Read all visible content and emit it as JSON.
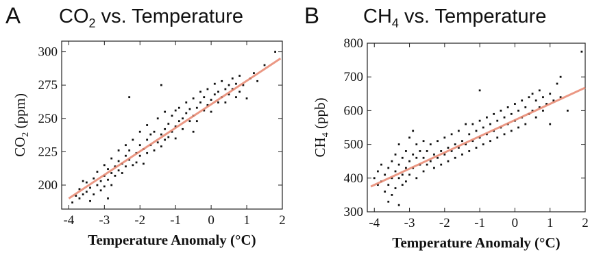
{
  "chart_data": [
    {
      "type": "scatter",
      "panel_label": "A",
      "title": "CO₂ vs. Temperature",
      "title_parts": {
        "pre": "CO",
        "sub": "2",
        "post": " vs. Temperature"
      },
      "xlabel": "Temperature Anomaly (°C)",
      "ylabel": "CO₂ (ppm)",
      "ylabel_parts": {
        "pre": "CO",
        "sub": "2",
        "post": " (ppm)"
      },
      "xlim": [
        -4.2,
        2.0
      ],
      "ylim": [
        182,
        308
      ],
      "xticks": [
        -4,
        -3,
        -2,
        -1,
        0,
        1,
        2
      ],
      "yticks": [
        200,
        225,
        250,
        275,
        300
      ],
      "fit_line": {
        "x": [
          -4.0,
          1.95
        ],
        "y": [
          190,
          295
        ],
        "color": "#e8866e"
      },
      "point_color": "#111111",
      "series": [
        {
          "points": [
            [
              -3.9,
              187
            ],
            [
              -3.8,
              192
            ],
            [
              -3.7,
              190
            ],
            [
              -3.7,
              197
            ],
            [
              -3.6,
              193
            ],
            [
              -3.5,
              195
            ],
            [
              -3.5,
              202
            ],
            [
              -3.4,
              188
            ],
            [
              -3.4,
              198
            ],
            [
              -3.3,
              205
            ],
            [
              -3.3,
              193
            ],
            [
              -3.2,
              200
            ],
            [
              -3.2,
              210
            ],
            [
              -3.1,
              196
            ],
            [
              -3.1,
              203
            ],
            [
              -3.0,
              207
            ],
            [
              -3.0,
              215
            ],
            [
              -3.0,
              199
            ],
            [
              -2.9,
              212
            ],
            [
              -2.9,
              204
            ],
            [
              -2.8,
              209
            ],
            [
              -2.8,
              220
            ],
            [
              -2.8,
              200
            ],
            [
              -2.7,
              214
            ],
            [
              -2.7,
              207
            ],
            [
              -2.6,
              218
            ],
            [
              -2.6,
              211
            ],
            [
              -2.6,
              226
            ],
            [
              -2.5,
              216
            ],
            [
              -2.5,
              209
            ],
            [
              -2.4,
              222
            ],
            [
              -2.4,
              214
            ],
            [
              -2.4,
              230
            ],
            [
              -2.3,
              219
            ],
            [
              -2.3,
              226
            ],
            [
              -2.2,
              215
            ],
            [
              -2.2,
              234
            ],
            [
              -2.1,
              224
            ],
            [
              -2.1,
              217
            ],
            [
              -2.0,
              230
            ],
            [
              -2.0,
              222
            ],
            [
              -2.0,
              240
            ],
            [
              -1.9,
              227
            ],
            [
              -1.9,
              216
            ],
            [
              -1.8,
              234
            ],
            [
              -1.8,
              224
            ],
            [
              -1.8,
              245
            ],
            [
              -1.7,
              230
            ],
            [
              -1.7,
              238
            ],
            [
              -1.6,
              226
            ],
            [
              -1.6,
              240
            ],
            [
              -1.5,
              232
            ],
            [
              -1.5,
              250
            ],
            [
              -1.4,
              238
            ],
            [
              -1.4,
              229
            ],
            [
              -1.3,
              242
            ],
            [
              -1.3,
              234
            ],
            [
              -1.3,
              255
            ],
            [
              -1.2,
              246
            ],
            [
              -1.2,
              236
            ],
            [
              -1.1,
              240
            ],
            [
              -1.1,
              252
            ],
            [
              -1.0,
              244
            ],
            [
              -1.0,
              256
            ],
            [
              -1.0,
              235
            ],
            [
              -0.9,
              248
            ],
            [
              -0.9,
              258
            ],
            [
              -0.8,
              250
            ],
            [
              -0.8,
              242
            ],
            [
              -0.7,
              254
            ],
            [
              -0.7,
              262
            ],
            [
              -0.6,
              248
            ],
            [
              -0.6,
              257
            ],
            [
              -0.5,
              252
            ],
            [
              -0.5,
              265
            ],
            [
              -0.4,
              258
            ],
            [
              -0.4,
              248
            ],
            [
              -0.3,
              262
            ],
            [
              -0.3,
              270
            ],
            [
              -0.2,
              256
            ],
            [
              -0.2,
              266
            ],
            [
              -0.1,
              260
            ],
            [
              -0.1,
              272
            ],
            [
              0.0,
              264
            ],
            [
              0.0,
              255
            ],
            [
              0.1,
              268
            ],
            [
              0.1,
              276
            ],
            [
              0.2,
              262
            ],
            [
              0.2,
              270
            ],
            [
              0.3,
              266
            ],
            [
              0.3,
              278
            ],
            [
              0.4,
              272
            ],
            [
              0.4,
              262
            ],
            [
              0.5,
              275
            ],
            [
              0.5,
              268
            ],
            [
              0.6,
              280
            ],
            [
              0.6,
              272
            ],
            [
              0.7,
              266
            ],
            [
              0.7,
              276
            ],
            [
              0.8,
              270
            ],
            [
              0.8,
              282
            ],
            [
              0.9,
              275
            ],
            [
              1.0,
              265
            ],
            [
              1.1,
              280
            ],
            [
              1.2,
              284
            ],
            [
              1.3,
              278
            ],
            [
              1.5,
              290
            ],
            [
              -2.3,
              266
            ],
            [
              -1.4,
              275
            ],
            [
              -3.6,
              203
            ],
            [
              -2.9,
              190
            ],
            [
              -0.5,
              240
            ],
            [
              1.8,
              300
            ]
          ]
        }
      ]
    },
    {
      "type": "scatter",
      "panel_label": "B",
      "title": "CH₄ vs. Temperature",
      "title_parts": {
        "pre": "CH",
        "sub": "4",
        "post": " vs. Temperature"
      },
      "xlabel": "Temperature Anomaly (°C)",
      "ylabel": "CH₄ (ppb)",
      "ylabel_parts": {
        "pre": "CH",
        "sub": "4",
        "post": " (ppb)"
      },
      "xlim": [
        -4.2,
        2.0
      ],
      "ylim": [
        300,
        800
      ],
      "xticks": [
        -4,
        -3,
        -2,
        -1,
        0,
        1,
        2
      ],
      "yticks": [
        300,
        400,
        500,
        600,
        700,
        800
      ],
      "fit_line": {
        "x": [
          -4.1,
          2.0
        ],
        "y": [
          375,
          668
        ],
        "color": "#e8866e"
      },
      "point_color": "#111111",
      "series": [
        {
          "points": [
            [
              -4.0,
              400
            ],
            [
              -3.9,
              380
            ],
            [
              -3.9,
              420
            ],
            [
              -3.8,
              390
            ],
            [
              -3.8,
              440
            ],
            [
              -3.7,
              360
            ],
            [
              -3.7,
              410
            ],
            [
              -3.6,
              430
            ],
            [
              -3.6,
              380
            ],
            [
              -3.5,
              400
            ],
            [
              -3.5,
              450
            ],
            [
              -3.5,
              350
            ],
            [
              -3.4,
              420
            ],
            [
              -3.4,
              470
            ],
            [
              -3.4,
              370
            ],
            [
              -3.3,
              400
            ],
            [
              -3.3,
              440
            ],
            [
              -3.3,
              500
            ],
            [
              -3.2,
              380
            ],
            [
              -3.2,
              460
            ],
            [
              -3.2,
              410
            ],
            [
              -3.1,
              430
            ],
            [
              -3.1,
              480
            ],
            [
              -3.1,
              390
            ],
            [
              -3.0,
              450
            ],
            [
              -3.0,
              520
            ],
            [
              -3.0,
              410
            ],
            [
              -2.9,
              470
            ],
            [
              -2.9,
              430
            ],
            [
              -2.9,
              540
            ],
            [
              -2.8,
              400
            ],
            [
              -2.8,
              460
            ],
            [
              -2.8,
              500
            ],
            [
              -2.7,
              440
            ],
            [
              -2.7,
              480
            ],
            [
              -2.6,
              420
            ],
            [
              -2.6,
              460
            ],
            [
              -2.6,
              510
            ],
            [
              -2.5,
              440
            ],
            [
              -2.5,
              480
            ],
            [
              -2.4,
              450
            ],
            [
              -2.4,
              500
            ],
            [
              -2.3,
              430
            ],
            [
              -2.3,
              470
            ],
            [
              -2.2,
              460
            ],
            [
              -2.2,
              510
            ],
            [
              -2.1,
              440
            ],
            [
              -2.1,
              480
            ],
            [
              -2.0,
              470
            ],
            [
              -2.0,
              520
            ],
            [
              -1.9,
              450
            ],
            [
              -1.9,
              490
            ],
            [
              -1.8,
              480
            ],
            [
              -1.8,
              530
            ],
            [
              -1.7,
              460
            ],
            [
              -1.7,
              500
            ],
            [
              -1.6,
              490
            ],
            [
              -1.6,
              540
            ],
            [
              -1.5,
              470
            ],
            [
              -1.5,
              510
            ],
            [
              -1.4,
              500
            ],
            [
              -1.4,
              560
            ],
            [
              -1.3,
              480
            ],
            [
              -1.3,
              530
            ],
            [
              -1.2,
              510
            ],
            [
              -1.2,
              560
            ],
            [
              -1.1,
              490
            ],
            [
              -1.1,
              540
            ],
            [
              -1.0,
              520
            ],
            [
              -1.0,
              570
            ],
            [
              -0.9,
              500
            ],
            [
              -0.9,
              550
            ],
            [
              -0.8,
              530
            ],
            [
              -0.8,
              580
            ],
            [
              -0.7,
              510
            ],
            [
              -0.7,
              560
            ],
            [
              -0.6,
              540
            ],
            [
              -0.6,
              590
            ],
            [
              -0.5,
              520
            ],
            [
              -0.5,
              570
            ],
            [
              -0.4,
              550
            ],
            [
              -0.4,
              600
            ],
            [
              -0.3,
              530
            ],
            [
              -0.3,
              580
            ],
            [
              -0.2,
              560
            ],
            [
              -0.2,
              610
            ],
            [
              -0.1,
              540
            ],
            [
              -0.1,
              590
            ],
            [
              0.0,
              570
            ],
            [
              0.0,
              620
            ],
            [
              0.1,
              550
            ],
            [
              0.1,
              600
            ],
            [
              0.2,
              580
            ],
            [
              0.2,
              630
            ],
            [
              0.3,
              560
            ],
            [
              0.3,
              610
            ],
            [
              0.4,
              590
            ],
            [
              0.4,
              640
            ],
            [
              0.5,
              600
            ],
            [
              0.5,
              650
            ],
            [
              0.6,
              580
            ],
            [
              0.6,
              630
            ],
            [
              0.7,
              610
            ],
            [
              0.7,
              660
            ],
            [
              0.8,
              600
            ],
            [
              0.8,
              640
            ],
            [
              0.9,
              620
            ],
            [
              1.0,
              560
            ],
            [
              1.0,
              650
            ],
            [
              1.1,
              630
            ],
            [
              1.2,
              680
            ],
            [
              1.3,
              700
            ],
            [
              1.3,
              640
            ],
            [
              1.5,
              600
            ],
            [
              1.9,
              775
            ],
            [
              -3.6,
              330
            ],
            [
              -3.3,
              320
            ],
            [
              -1.0,
              660
            ]
          ]
        }
      ]
    }
  ]
}
